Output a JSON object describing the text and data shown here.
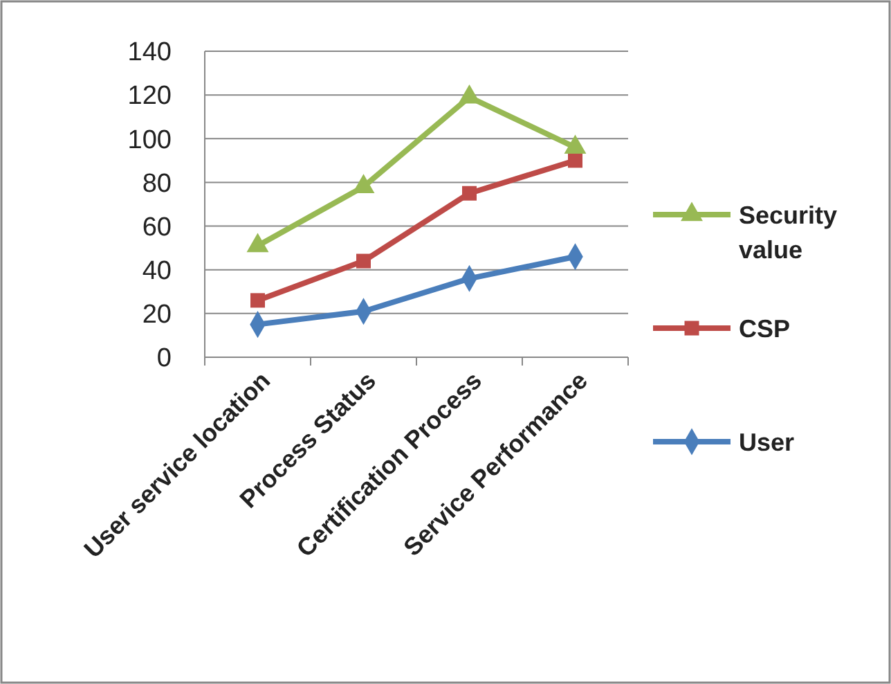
{
  "chart_data": {
    "type": "line",
    "categories": [
      "User service location",
      "Process Status",
      "Certification Process",
      "Service Performance"
    ],
    "series": [
      {
        "name": "User",
        "color": "#4a7ebb",
        "values": [
          15,
          21,
          36,
          46
        ],
        "marker": "diamond"
      },
      {
        "name": "CSP",
        "color": "#be4b48",
        "values": [
          26,
          44,
          75,
          90
        ],
        "marker": "square"
      },
      {
        "name": "Security value",
        "color": "#98b954",
        "values": [
          51,
          78,
          119,
          96
        ],
        "marker": "triangle"
      }
    ],
    "ylim": [
      0,
      140
    ],
    "yticks": [
      0,
      20,
      40,
      60,
      80,
      100,
      120,
      140
    ],
    "grid": "y",
    "legend": "right"
  }
}
